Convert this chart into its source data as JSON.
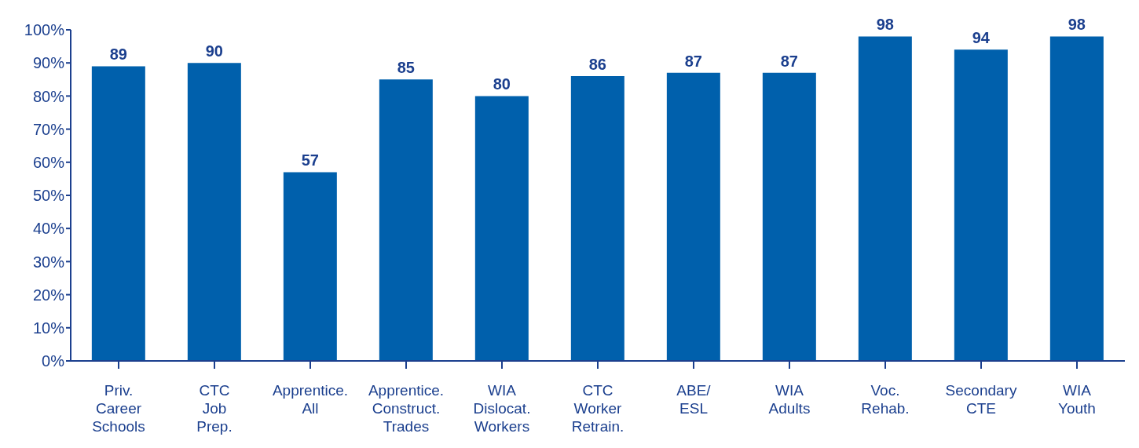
{
  "chart_data": {
    "type": "bar",
    "categories": [
      "Priv.\nCareer\nSchools",
      "CTC\nJob\nPrep.",
      "Apprentice.\nAll",
      "Apprentice.\nConstruct.\nTrades",
      "WIA\nDislocat.\nWorkers",
      "CTC\nWorker\nRetrain.",
      "ABE/\nESL",
      "WIA\nAdults",
      "Voc.\nRehab.",
      "Secondary\nCTE",
      "WIA\nYouth"
    ],
    "values": [
      89,
      90,
      57,
      85,
      80,
      86,
      87,
      87,
      98,
      94,
      98
    ],
    "color": "#0060ac",
    "ylim": [
      0,
      100
    ],
    "yticks": [
      {
        "value": 0,
        "label": "0%"
      },
      {
        "value": 10,
        "label": "10%"
      },
      {
        "value": 20,
        "label": "20%"
      },
      {
        "value": 30,
        "label": "30%"
      },
      {
        "value": 40,
        "label": "40%"
      },
      {
        "value": 50,
        "label": "50%"
      },
      {
        "value": 60,
        "label": "60%"
      },
      {
        "value": 70,
        "label": "70%"
      },
      {
        "value": 80,
        "label": "80%"
      },
      {
        "value": 90,
        "label": "90%"
      },
      {
        "value": 100,
        "label": "100%"
      }
    ],
    "data_labels": true,
    "grid": false,
    "legend": false
  }
}
